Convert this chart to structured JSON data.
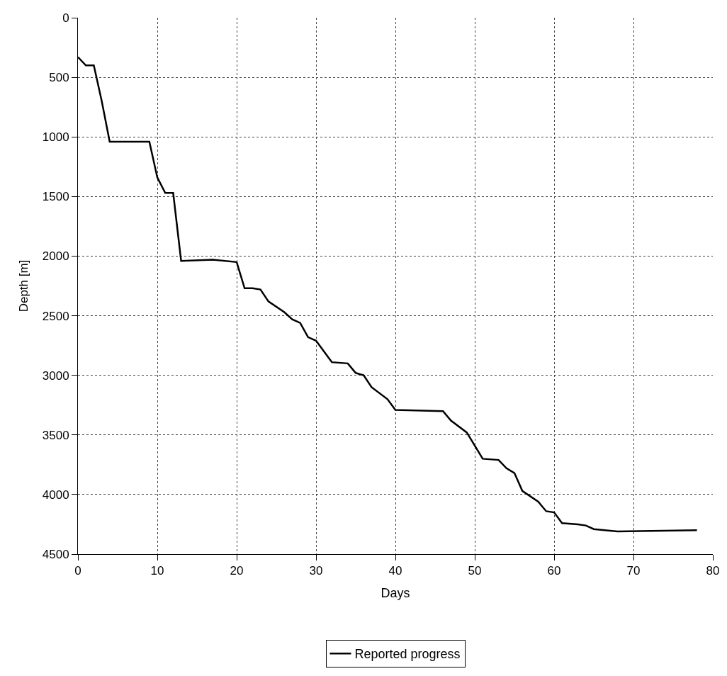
{
  "chart_data": {
    "type": "line",
    "xlabel": "Days",
    "ylabel": "Depth [m]",
    "x": [
      0,
      1,
      2,
      3,
      4,
      9,
      10,
      11,
      12,
      13,
      17,
      20,
      21,
      22,
      23,
      24,
      26,
      27,
      28,
      29,
      30,
      32,
      34,
      35,
      36,
      37,
      39,
      40,
      46,
      47,
      49,
      51,
      53,
      54,
      55,
      56,
      58,
      59,
      60,
      61,
      63,
      64,
      65,
      68,
      78
    ],
    "series": [
      {
        "name": "Reported progress",
        "color": "#000000",
        "values": [
          330,
          400,
          400,
          700,
          1040,
          1040,
          1340,
          1470,
          1470,
          2040,
          2030,
          2050,
          2270,
          2270,
          2280,
          2380,
          2470,
          2530,
          2560,
          2680,
          2710,
          2890,
          2900,
          2980,
          3000,
          3100,
          3200,
          3290,
          3300,
          3380,
          3480,
          3700,
          3710,
          3780,
          3820,
          3970,
          4060,
          4140,
          4150,
          4240,
          4250,
          4260,
          4290,
          4310,
          4300
        ]
      }
    ],
    "xlim": [
      0,
      80
    ],
    "xticks": [
      0,
      10,
      20,
      30,
      40,
      50,
      60,
      70,
      80
    ],
    "ylim": [
      4500,
      0
    ],
    "yticks": [
      0,
      500,
      1000,
      1500,
      2000,
      2500,
      3000,
      3500,
      4000,
      4500
    ],
    "grid": true,
    "legend": "bottom",
    "marker": "none",
    "line_style": "solid"
  }
}
